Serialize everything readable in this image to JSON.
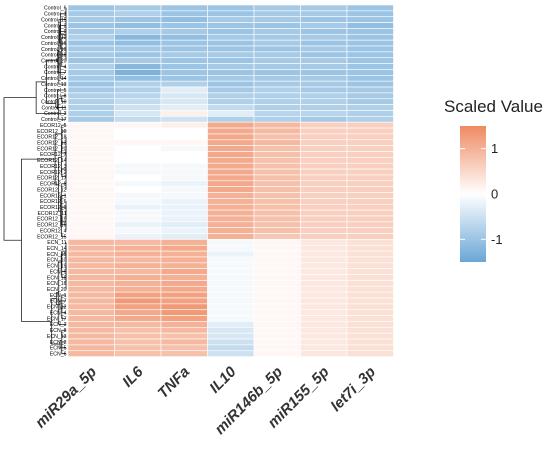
{
  "chart_data": {
    "type": "heatmap",
    "title": "",
    "legend": {
      "title": "Scaled Value",
      "ticks": [
        1,
        0,
        -1
      ],
      "range": [
        -1.5,
        1.5
      ],
      "colors": {
        "low": "#6AA6D6",
        "mid": "#FFFFFF",
        "high": "#EF8A62"
      },
      "position": "right"
    },
    "columns": [
      "miR29a_5p",
      "IL6",
      "TNFa",
      "IL10",
      "miR146b_5p",
      "miR155_5p",
      "let7i_3p"
    ],
    "rows": [
      "Control_6",
      "Control_1",
      "Control_15",
      "Control_2",
      "Control_9",
      "Control_12",
      "Control_16",
      "Control_19",
      "Control_18",
      "Control_20",
      "Control_4",
      "Control_7",
      "Control_14",
      "Control_13",
      "Control_5",
      "Control_8",
      "Control_10",
      "Control_11",
      "Control_3",
      "Control_17",
      "ECOR12_5",
      "ECOR12_10",
      "ECOR12_18",
      "ECOR12_13",
      "ECOR12_20",
      "ECOR12_7",
      "ECOR12_14",
      "ECOR12_3",
      "ECOR12_2",
      "ECOR12_17",
      "ECOR12_8",
      "ECOR12_12",
      "ECOR12_1",
      "ECOR12_6",
      "ECOR12_9",
      "ECOR12_11",
      "ECOR12_19",
      "ECOR12_16",
      "ECOR12_4",
      "ECOR12_15",
      "ECN_11",
      "ECN_14",
      "ECN_15",
      "ECN_10",
      "ECN_19",
      "ECN_9",
      "ECN_18",
      "ECN_16",
      "ECN_20",
      "ECN_1",
      "ECN_7",
      "ECN_12",
      "ECN_4",
      "ECN_17",
      "ECN_3",
      "ECN_8",
      "ECN_13",
      "ECN_2",
      "ECN_5",
      "ECN_6"
    ],
    "values": [
      [
        -1.0,
        -0.9,
        -1.0,
        -1.0,
        -0.9,
        -0.9,
        -1.0
      ],
      [
        -0.9,
        -0.8,
        -1.0,
        -1.0,
        -0.9,
        -0.9,
        -1.0
      ],
      [
        -0.9,
        -1.0,
        -1.1,
        -0.9,
        -0.9,
        -1.0,
        -1.0
      ],
      [
        -1.0,
        -1.1,
        -1.0,
        -1.0,
        -1.0,
        -0.9,
        -1.1
      ],
      [
        -0.9,
        -0.8,
        -0.9,
        -1.0,
        -0.9,
        -1.0,
        -1.0
      ],
      [
        -0.8,
        -1.2,
        -1.1,
        -0.9,
        -0.9,
        -0.9,
        -1.0
      ],
      [
        -1.0,
        -1.1,
        -1.0,
        -1.0,
        -0.9,
        -1.0,
        -1.0
      ],
      [
        -0.9,
        -0.9,
        -1.0,
        -1.0,
        -1.0,
        -0.9,
        -1.0
      ],
      [
        -0.9,
        -1.0,
        -0.9,
        -0.9,
        -0.9,
        -1.0,
        -1.0
      ],
      [
        -1.0,
        -0.9,
        -1.0,
        -1.0,
        -0.9,
        -0.9,
        -1.0
      ],
      [
        -0.8,
        -1.2,
        -1.0,
        -0.9,
        -0.9,
        -0.9,
        -1.0
      ],
      [
        -0.9,
        -1.3,
        -1.0,
        -1.0,
        -1.0,
        -1.0,
        -1.0
      ],
      [
        -0.9,
        -1.1,
        -1.0,
        -0.9,
        -0.9,
        -0.9,
        -1.0
      ],
      [
        -1.0,
        -0.8,
        -0.8,
        -1.0,
        -0.9,
        -0.9,
        -1.0
      ],
      [
        -0.9,
        -0.8,
        -0.3,
        -0.9,
        -0.8,
        -0.9,
        -0.9
      ],
      [
        -0.8,
        -0.7,
        -0.4,
        -0.8,
        -0.8,
        -0.8,
        -0.9
      ],
      [
        -0.8,
        -0.6,
        -0.4,
        -0.8,
        -0.8,
        -0.8,
        -0.9
      ],
      [
        -0.8,
        -0.5,
        -0.3,
        -0.6,
        -0.8,
        -0.8,
        -0.8
      ],
      [
        -0.8,
        -0.4,
        0.2,
        -0.3,
        -0.7,
        -0.7,
        -0.8
      ],
      [
        -0.9,
        -0.6,
        -0.5,
        -0.8,
        -0.8,
        -0.9,
        -0.8
      ],
      [
        0.1,
        0.1,
        0.2,
        1.1,
        0.9,
        0.6,
        0.6
      ],
      [
        0.1,
        0.0,
        0.0,
        1.1,
        0.9,
        0.6,
        0.6
      ],
      [
        0.1,
        0.0,
        0.0,
        1.1,
        0.8,
        0.6,
        0.6
      ],
      [
        0.1,
        0.1,
        0.1,
        1.1,
        0.9,
        0.6,
        0.6
      ],
      [
        0.1,
        0.0,
        -0.1,
        1.1,
        0.8,
        0.6,
        0.6
      ],
      [
        0.1,
        0.0,
        0.0,
        1.1,
        0.8,
        0.6,
        0.6
      ],
      [
        0.1,
        0.0,
        0.0,
        1.1,
        0.8,
        0.6,
        0.6
      ],
      [
        0.1,
        -0.1,
        -0.1,
        1.1,
        0.8,
        0.6,
        0.6
      ],
      [
        0.1,
        -0.1,
        -0.1,
        1.1,
        0.8,
        0.6,
        0.6
      ],
      [
        0.1,
        0.0,
        -0.1,
        1.1,
        0.8,
        0.6,
        0.6
      ],
      [
        0.1,
        -0.1,
        -0.2,
        1.1,
        0.8,
        0.6,
        0.6
      ],
      [
        0.1,
        0.0,
        -0.1,
        1.1,
        0.8,
        0.6,
        0.6
      ],
      [
        0.1,
        -0.1,
        -0.1,
        1.0,
        0.8,
        0.6,
        0.6
      ],
      [
        0.1,
        -0.1,
        -0.2,
        1.0,
        0.8,
        0.6,
        0.6
      ],
      [
        0.1,
        -0.2,
        -0.2,
        1.0,
        0.8,
        0.6,
        0.6
      ],
      [
        0.1,
        -0.1,
        -0.2,
        1.0,
        0.8,
        0.6,
        0.6
      ],
      [
        0.1,
        -0.1,
        -0.2,
        1.0,
        0.8,
        0.6,
        0.6
      ],
      [
        0.1,
        -0.2,
        -0.3,
        1.0,
        0.8,
        0.6,
        0.6
      ],
      [
        0.1,
        -0.1,
        -0.2,
        1.0,
        0.8,
        0.6,
        0.6
      ],
      [
        0.1,
        -0.2,
        -0.3,
        1.0,
        0.7,
        0.6,
        0.6
      ],
      [
        0.9,
        0.9,
        1.0,
        -0.1,
        0.1,
        0.3,
        0.4
      ],
      [
        0.9,
        1.0,
        1.1,
        -0.1,
        0.1,
        0.3,
        0.4
      ],
      [
        0.9,
        1.0,
        1.0,
        -0.2,
        0.1,
        0.3,
        0.4
      ],
      [
        0.9,
        0.9,
        1.0,
        -0.1,
        0.1,
        0.3,
        0.4
      ],
      [
        0.9,
        1.0,
        1.0,
        -0.1,
        0.1,
        0.3,
        0.4
      ],
      [
        0.9,
        0.9,
        1.1,
        -0.1,
        0.1,
        0.3,
        0.4
      ],
      [
        0.9,
        1.0,
        1.0,
        -0.1,
        0.1,
        0.3,
        0.4
      ],
      [
        0.9,
        1.0,
        1.1,
        -0.1,
        0.1,
        0.3,
        0.4
      ],
      [
        0.9,
        1.0,
        1.1,
        -0.1,
        0.1,
        0.3,
        0.4
      ],
      [
        0.9,
        1.2,
        1.2,
        -0.1,
        0.1,
        0.3,
        0.4
      ],
      [
        0.9,
        1.3,
        1.2,
        -0.1,
        0.1,
        0.3,
        0.4
      ],
      [
        0.9,
        1.2,
        1.3,
        -0.1,
        0.1,
        0.3,
        0.4
      ],
      [
        0.9,
        1.1,
        1.3,
        -0.1,
        0.1,
        0.3,
        0.4
      ],
      [
        0.9,
        1.1,
        1.2,
        -0.1,
        0.1,
        0.3,
        0.4
      ],
      [
        0.9,
        0.9,
        1.0,
        -0.3,
        0.1,
        0.3,
        0.4
      ],
      [
        0.9,
        0.8,
        0.9,
        -0.4,
        0.1,
        0.3,
        0.4
      ],
      [
        0.9,
        0.8,
        0.8,
        -0.4,
        0.1,
        0.3,
        0.4
      ],
      [
        0.9,
        0.8,
        0.9,
        -0.5,
        0.1,
        0.3,
        0.4
      ],
      [
        0.9,
        0.8,
        0.8,
        -0.6,
        0.1,
        0.3,
        0.4
      ],
      [
        0.9,
        0.8,
        0.8,
        -0.5,
        0.1,
        0.3,
        0.4
      ]
    ]
  }
}
